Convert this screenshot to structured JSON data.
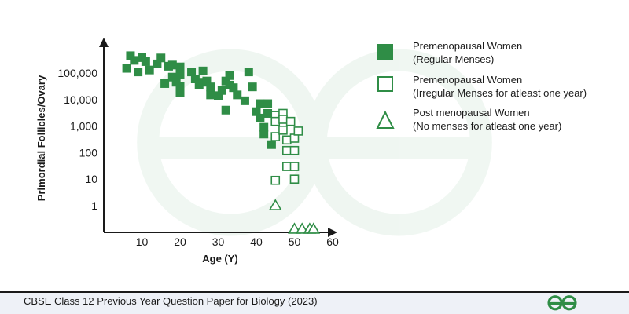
{
  "colors": {
    "accent": "#2f8d46",
    "watermark": "#2f8d46",
    "footer_bg": "#eef1f7",
    "footer_rule": "#1a1a1a",
    "axis": "#1a1a1a"
  },
  "icons": {
    "watermark": "gfg-logo-icon",
    "footer_logo": "gfg-logo-icon"
  },
  "footer": {
    "caption": "CBSE Class 12 Previous Year Question Paper for Biology (2023)"
  },
  "chart_data": {
    "type": "scatter",
    "xlabel": "Age (Y)",
    "ylabel": "Primordial Follicles/Ovary",
    "x_ticks": [
      10,
      20,
      30,
      40,
      50,
      60
    ],
    "y_ticks": [
      {
        "value": 1,
        "label": "1"
      },
      {
        "value": 10,
        "label": "10"
      },
      {
        "value": 100,
        "label": "100"
      },
      {
        "value": 1000,
        "label": "1,000"
      },
      {
        "value": 10000,
        "label": "10,000"
      },
      {
        "value": 100000,
        "label": "100,000"
      }
    ],
    "xlim": [
      0,
      60
    ],
    "ylog": true,
    "ylim": [
      0.1,
      600000
    ],
    "grid": false,
    "legend_position": "right",
    "series": [
      {
        "name": "Premenopausal Women",
        "name_line2": "(Regular Menses)",
        "marker": "filled-square",
        "points": [
          [
            6,
            150000
          ],
          [
            7,
            450000
          ],
          [
            8,
            300000
          ],
          [
            9,
            110000
          ],
          [
            10,
            380000
          ],
          [
            11,
            270000
          ],
          [
            12,
            130000
          ],
          [
            14,
            220000
          ],
          [
            15,
            370000
          ],
          [
            16,
            40000
          ],
          [
            17,
            180000
          ],
          [
            18,
            200000
          ],
          [
            18,
            70000
          ],
          [
            19,
            45000
          ],
          [
            20,
            170000
          ],
          [
            20,
            90000
          ],
          [
            20,
            32000
          ],
          [
            20,
            18000
          ],
          [
            23,
            110000
          ],
          [
            24,
            60000
          ],
          [
            25,
            35000
          ],
          [
            26,
            120000
          ],
          [
            26,
            45000
          ],
          [
            27,
            50000
          ],
          [
            28,
            15000
          ],
          [
            28,
            30000
          ],
          [
            30,
            14000
          ],
          [
            31,
            22000
          ],
          [
            32,
            4000
          ],
          [
            32,
            50000
          ],
          [
            33,
            80000
          ],
          [
            33,
            35000
          ],
          [
            34,
            28000
          ],
          [
            35,
            15000
          ],
          [
            37,
            9000
          ],
          [
            38,
            110000
          ],
          [
            39,
            30000
          ],
          [
            40,
            3500
          ],
          [
            41,
            7000
          ],
          [
            41,
            2000
          ],
          [
            42,
            900
          ],
          [
            42,
            500
          ],
          [
            43,
            7000
          ],
          [
            43,
            3000
          ],
          [
            44,
            200
          ]
        ]
      },
      {
        "name": "Premenopausal Women",
        "name_line2": "(Irregular Menses for atleast one year)",
        "marker": "open-square",
        "points": [
          [
            45,
            2500
          ],
          [
            45,
            1500
          ],
          [
            45,
            400
          ],
          [
            45,
            9
          ],
          [
            47,
            3000
          ],
          [
            47,
            1800
          ],
          [
            47,
            700
          ],
          [
            48,
            300
          ],
          [
            48,
            120
          ],
          [
            48,
            30
          ],
          [
            49,
            1500
          ],
          [
            50,
            350
          ],
          [
            50,
            120
          ],
          [
            50,
            10
          ],
          [
            50,
            30
          ],
          [
            51,
            650
          ]
        ]
      },
      {
        "name": "Post menopausal Women",
        "name_line2": "(No menses for atleast one year)",
        "marker": "open-triangle",
        "points": [
          [
            45,
            1
          ],
          [
            50,
            0.13
          ],
          [
            52,
            0.13
          ],
          [
            54,
            0.13
          ],
          [
            55,
            0.13
          ]
        ]
      }
    ]
  }
}
